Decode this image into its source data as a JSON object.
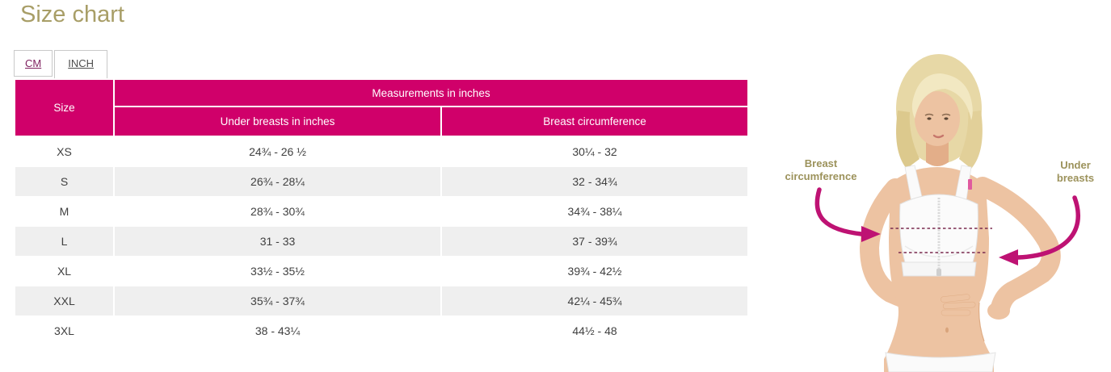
{
  "page": {
    "title": "Size chart",
    "title_color": "#A89E67"
  },
  "tabs": [
    {
      "label": "CM",
      "active": false
    },
    {
      "label": "INCH",
      "active": true
    }
  ],
  "table": {
    "header_bg": "#D0006A",
    "header": {
      "size_label": "Size",
      "group_label": "Measurements in inches",
      "col1_label": "Under breasts in inches",
      "col2_label": "Breast circumference"
    },
    "rows": [
      {
        "size": "XS",
        "under_breasts": "24¾ - 26 ½",
        "breast_circumference": "30¼ - 32"
      },
      {
        "size": "S",
        "under_breasts": "26¾ - 28¼",
        "breast_circumference": "32 - 34¾"
      },
      {
        "size": "M",
        "under_breasts": "28¾ - 30¾",
        "breast_circumference": "34¾ - 38¼"
      },
      {
        "size": "L",
        "under_breasts": "31 - 33",
        "breast_circumference": "37 - 39¾"
      },
      {
        "size": "XL",
        "under_breasts": "33½ - 35½",
        "breast_circumference": "39¾ - 42½"
      },
      {
        "size": "XXL",
        "under_breasts": "35¾ - 37¾",
        "breast_circumference": "42¼ - 45¾"
      },
      {
        "size": "3XL",
        "under_breasts": "38 - 43¼",
        "breast_circumference": "44½ - 48"
      }
    ]
  },
  "illustration": {
    "label_left_line1": "Breast",
    "label_left_line2": "circumference",
    "label_right_line1": "Under",
    "label_right_line2": "breasts",
    "label_color": "#9C925B",
    "arrow_color": "#BE1273",
    "dash_color": "#7A2B4F",
    "tag_color": "#E05A9E"
  }
}
